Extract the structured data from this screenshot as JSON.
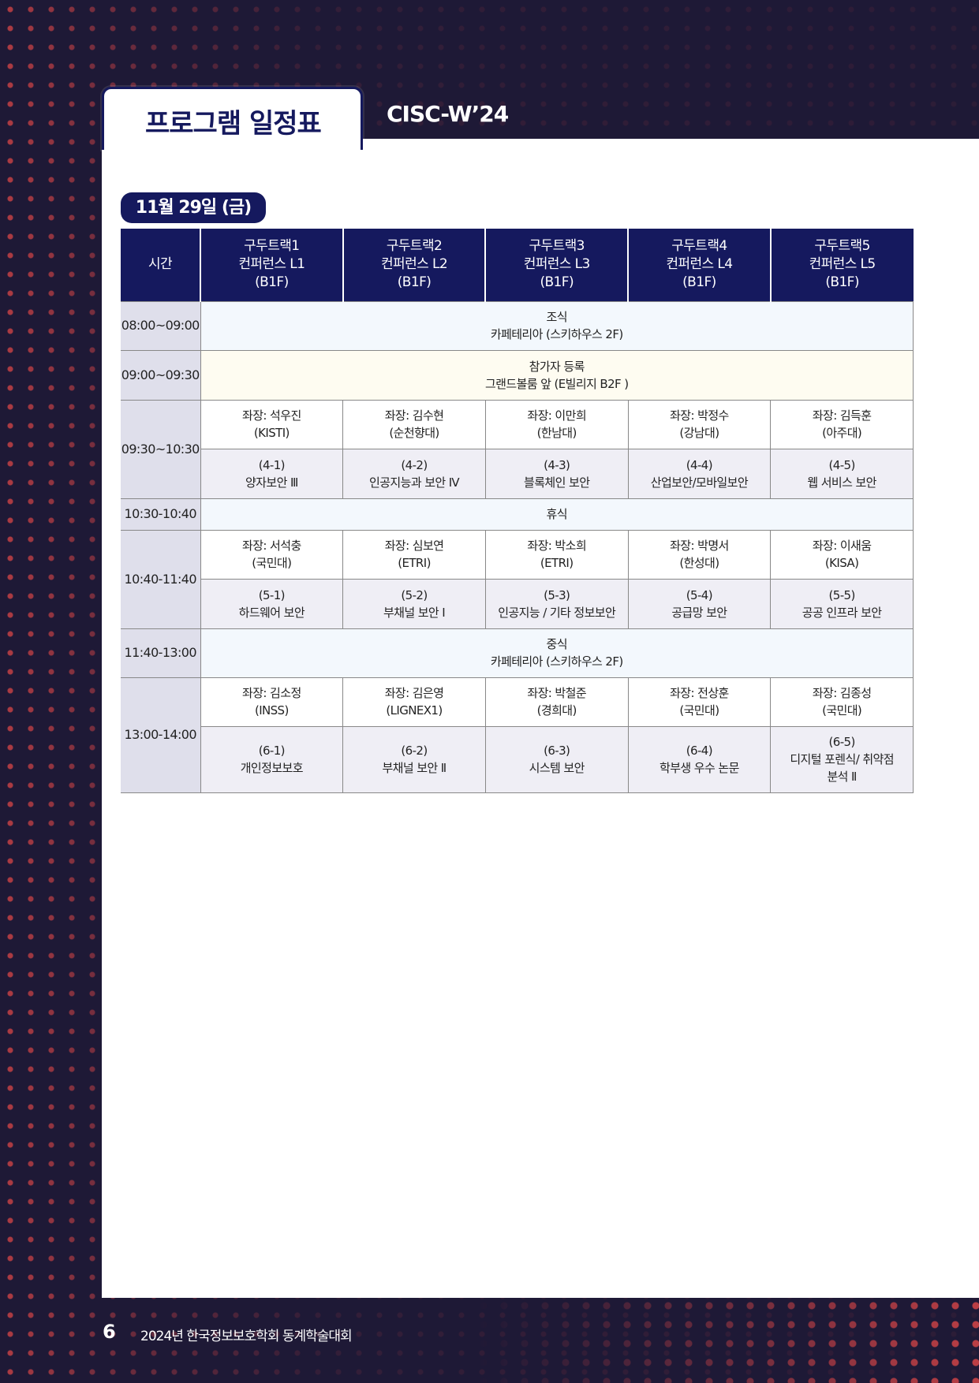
{
  "header": {
    "title": "프로그램 일정표",
    "brand": "CISC-W’24"
  },
  "date": "11월 29일 (금)",
  "table": {
    "time_header": "시간",
    "tracks": [
      {
        "name": "구두트랙1",
        "room": "컨퍼런스 L1",
        "floor": "(B1F)"
      },
      {
        "name": "구두트랙2",
        "room": "컨퍼런스 L2",
        "floor": "(B1F)"
      },
      {
        "name": "구두트랙3",
        "room": "컨퍼런스 L3",
        "floor": "(B1F)"
      },
      {
        "name": "구두트랙4",
        "room": "컨퍼런스 L4",
        "floor": "(B1F)"
      },
      {
        "name": "구두트랙5",
        "room": "컨퍼런스 L5",
        "floor": "(B1F)"
      }
    ],
    "breakfast": {
      "time": "08:00~09:00",
      "title": "조식",
      "place": "카페테리아 (스키하우스 2F)"
    },
    "registration": {
      "time": "09:00~09:30",
      "title": "참가자 등록",
      "place": "그랜드볼룸 앞 (E빌리지 B2F )"
    },
    "block4": {
      "time": "09:30~10:30",
      "chairs": [
        [
          "좌장: 석우진",
          "(KISTI)"
        ],
        [
          "좌장: 김수현",
          "(순천향대)"
        ],
        [
          "좌장: 이만희",
          "(한남대)"
        ],
        [
          "좌장: 박정수",
          "(강남대)"
        ],
        [
          "좌장: 김득훈",
          "(아주대)"
        ]
      ],
      "sessions": [
        [
          "(4-1)",
          "양자보안 Ⅲ"
        ],
        [
          "(4-2)",
          "인공지능과 보안 Ⅳ"
        ],
        [
          "(4-3)",
          "블록체인 보안"
        ],
        [
          "(4-4)",
          "산업보안/모바일보안"
        ],
        [
          "(4-5)",
          "웹 서비스 보안"
        ]
      ]
    },
    "break": {
      "time": "10:30-10:40",
      "title": "휴식"
    },
    "block5": {
      "time": "10:40-11:40",
      "chairs": [
        [
          "좌장: 서석충",
          "(국민대)"
        ],
        [
          "좌장: 심보연",
          "(ETRI)"
        ],
        [
          "좌장: 박소희",
          "(ETRI)"
        ],
        [
          "좌장: 박명서",
          "(한성대)"
        ],
        [
          "좌장: 이새움",
          "(KISA)"
        ]
      ],
      "sessions": [
        [
          "(5-1)",
          "하드웨어 보안"
        ],
        [
          "(5-2)",
          "부채널 보안 Ⅰ"
        ],
        [
          "(5-3)",
          "인공지능 / 기타 정보보안"
        ],
        [
          "(5-4)",
          "공급망 보안"
        ],
        [
          "(5-5)",
          "공공 인프라 보안"
        ]
      ]
    },
    "lunch": {
      "time": "11:40-13:00",
      "title": "중식",
      "place": "카페테리아 (스키하우스 2F)"
    },
    "block6": {
      "time": "13:00-14:00",
      "chairs": [
        [
          "좌장: 김소정",
          "(INSS)"
        ],
        [
          "좌장: 김은영",
          "(LIGNEX1)"
        ],
        [
          "좌장: 박철준",
          "(경희대)"
        ],
        [
          "좌장: 전상훈",
          "(국민대)"
        ],
        [
          "좌장: 김종성",
          "(국민대)"
        ]
      ],
      "sessions": [
        [
          "(6-1)",
          "개인정보보호"
        ],
        [
          "(6-2)",
          "부채널 보안 Ⅱ"
        ],
        [
          "(6-3)",
          "시스템 보안"
        ],
        [
          "(6-4)",
          "학부생 우수 논문"
        ],
        [
          "(6-5)",
          "디지털 포렌식/ 취약점 분석 Ⅱ"
        ]
      ]
    }
  },
  "footer": {
    "page": "6",
    "text": "2024년 한국정보보호학회 동계학술대회"
  },
  "colors": {
    "navy": "#15195e",
    "background": "#1e1936",
    "accent_dots": "#e24848"
  }
}
